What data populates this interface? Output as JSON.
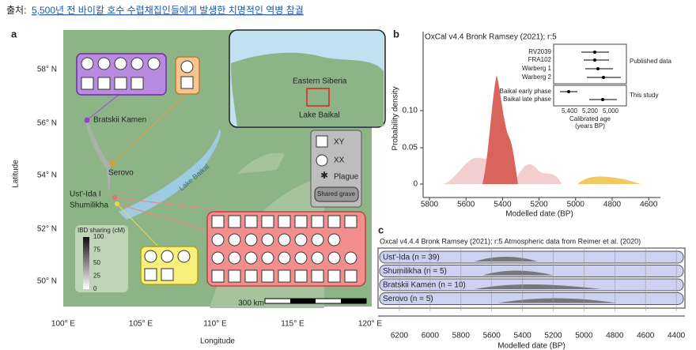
{
  "caption": {
    "source": "출처:",
    "link": "5,500년 전 바이칼 호수 수렵채집인들에게 발생한 치명적인 역병 참궐"
  },
  "panel_a": {
    "label": "a",
    "y_axis": "Latitude",
    "x_axis": "Longitude",
    "yticks": [
      "58° N",
      "56° N",
      "54° N",
      "52° N",
      "50° N"
    ],
    "xticks": [
      "100° E",
      "105° E",
      "110° E",
      "115° E",
      "120° E"
    ],
    "sites": [
      "Bratskii Kamen",
      "Serovo",
      "Ust'-Ida I",
      "Shumilikha"
    ],
    "lake": "Lake Baikal",
    "inset": [
      "Eastern Siberia",
      "Lake Baikal"
    ],
    "legend": [
      "XY",
      "XX",
      "Plague",
      "Shared grave"
    ],
    "ibd": {
      "title": "IBD sharing (cM)",
      "ticks": [
        "100",
        "75",
        "50",
        "25",
        "0"
      ]
    },
    "scale": "300 km"
  },
  "panel_b": {
    "label": "b",
    "title": "OxCal v4.4 Bronk Ramsey (2021); r:5",
    "y_axis": "Probability density",
    "yticks": [
      "0.10",
      "0.05",
      "0"
    ],
    "xticks": [
      "5800",
      "5600",
      "5400",
      "5200",
      "5000",
      "4800",
      "4600"
    ],
    "x_axis": "Modelled date (BP)",
    "published": [
      "RV2039",
      "FRA102",
      "Warberg 1",
      "Warberg 2"
    ],
    "published_label": "Published data",
    "study": [
      "Baikal early phase",
      "Baikal late phase"
    ],
    "study_label": "This study",
    "inset_ticks": [
      "5,400",
      "5,200",
      "5,000"
    ],
    "inset_axis": "Calibrated age",
    "inset_unit": "(years BP)"
  },
  "panel_c": {
    "label": "c",
    "title": "Oxcal v4.4.4 Bronk Ramsey (2021); r:5 Atmospheric data from Reimer et al. (2020)",
    "rows": [
      "Ust'-Ida (n = 39)",
      "Shumilikha (n = 5)",
      "Bratskii Kamen (n = 10)",
      "Serovo (n = 5)"
    ],
    "xticks": [
      "6200",
      "6000",
      "5800",
      "5600",
      "5400",
      "5200",
      "5000",
      "4800",
      "4600",
      "4400"
    ],
    "x_axis": "Modelled date (BP)"
  }
}
